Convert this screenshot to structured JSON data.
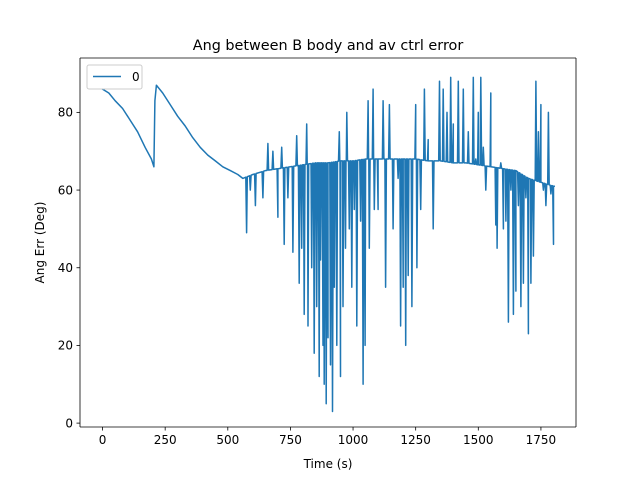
{
  "chart_data": {
    "type": "line",
    "title": "Ang between B body and av ctrl error",
    "xlabel": "Time (s)",
    "ylabel": "Ang Err (Deg)",
    "xlim": [
      -90,
      1890
    ],
    "ylim": [
      -1,
      94
    ],
    "xticks": [
      0,
      250,
      500,
      750,
      1000,
      1250,
      1500,
      1750
    ],
    "yticks": [
      0,
      20,
      40,
      60,
      80
    ],
    "grid": false,
    "legend": {
      "position": "top-left",
      "entries": [
        "0"
      ]
    },
    "series": [
      {
        "name": "0",
        "color": "#1f77b4",
        "baseline": [
          [
            0,
            86
          ],
          [
            25,
            85
          ],
          [
            50,
            83
          ],
          [
            80,
            81
          ],
          [
            110,
            78
          ],
          [
            140,
            75
          ],
          [
            170,
            71
          ],
          [
            195,
            68
          ],
          [
            205,
            66
          ],
          [
            209,
            83
          ],
          [
            215,
            87
          ],
          [
            240,
            85
          ],
          [
            270,
            82
          ],
          [
            300,
            79
          ],
          [
            330,
            76.5
          ],
          [
            360,
            73.5
          ],
          [
            390,
            71
          ],
          [
            420,
            69
          ],
          [
            450,
            67.5
          ],
          [
            480,
            66
          ],
          [
            510,
            65
          ],
          [
            540,
            64
          ],
          [
            560,
            63
          ],
          [
            600,
            64
          ],
          [
            650,
            65
          ],
          [
            700,
            65.5
          ],
          [
            750,
            66
          ],
          [
            800,
            66.5
          ],
          [
            850,
            67
          ],
          [
            900,
            67
          ],
          [
            950,
            67.5
          ],
          [
            1000,
            67.5
          ],
          [
            1050,
            68
          ],
          [
            1100,
            68
          ],
          [
            1150,
            68
          ],
          [
            1200,
            68
          ],
          [
            1250,
            68
          ],
          [
            1300,
            67.5
          ],
          [
            1350,
            67.5
          ],
          [
            1400,
            67
          ],
          [
            1450,
            67
          ],
          [
            1500,
            66.5
          ],
          [
            1550,
            66
          ],
          [
            1600,
            65.5
          ],
          [
            1650,
            65
          ],
          [
            1700,
            63
          ],
          [
            1750,
            62
          ],
          [
            1800,
            61
          ]
        ],
        "spikes": [
          [
            575,
            49
          ],
          [
            590,
            60
          ],
          [
            610,
            56
          ],
          [
            640,
            58
          ],
          [
            660,
            72
          ],
          [
            680,
            70
          ],
          [
            700,
            53
          ],
          [
            715,
            71
          ],
          [
            725,
            46
          ],
          [
            740,
            58
          ],
          [
            760,
            44
          ],
          [
            775,
            74
          ],
          [
            785,
            36
          ],
          [
            795,
            45
          ],
          [
            805,
            28
          ],
          [
            815,
            77
          ],
          [
            820,
            25
          ],
          [
            835,
            40
          ],
          [
            845,
            18
          ],
          [
            855,
            30
          ],
          [
            865,
            12
          ],
          [
            870,
            42
          ],
          [
            880,
            20
          ],
          [
            885,
            10
          ],
          [
            893,
            5
          ],
          [
            900,
            22
          ],
          [
            910,
            15
          ],
          [
            918,
            3
          ],
          [
            925,
            35
          ],
          [
            935,
            20
          ],
          [
            945,
            75
          ],
          [
            950,
            12
          ],
          [
            960,
            30
          ],
          [
            970,
            45
          ],
          [
            975,
            80
          ],
          [
            985,
            50
          ],
          [
            995,
            35
          ],
          [
            1005,
            55
          ],
          [
            1015,
            25
          ],
          [
            1030,
            52
          ],
          [
            1040,
            10
          ],
          [
            1048,
            20
          ],
          [
            1060,
            83
          ],
          [
            1065,
            45
          ],
          [
            1080,
            86
          ],
          [
            1085,
            55
          ],
          [
            1100,
            55
          ],
          [
            1120,
            83
          ],
          [
            1130,
            35
          ],
          [
            1145,
            82
          ],
          [
            1160,
            50
          ],
          [
            1180,
            63
          ],
          [
            1190,
            25
          ],
          [
            1200,
            35
          ],
          [
            1210,
            20
          ],
          [
            1220,
            38
          ],
          [
            1235,
            30
          ],
          [
            1250,
            82
          ],
          [
            1255,
            40
          ],
          [
            1270,
            55
          ],
          [
            1285,
            86
          ],
          [
            1300,
            73
          ],
          [
            1320,
            50
          ],
          [
            1345,
            88
          ],
          [
            1360,
            86
          ],
          [
            1375,
            80
          ],
          [
            1390,
            89
          ],
          [
            1400,
            77
          ],
          [
            1420,
            88
          ],
          [
            1440,
            86
          ],
          [
            1460,
            75
          ],
          [
            1480,
            89
          ],
          [
            1490,
            68
          ],
          [
            1500,
            80
          ],
          [
            1510,
            89
          ],
          [
            1520,
            71
          ],
          [
            1530,
            60
          ],
          [
            1550,
            85
          ],
          [
            1570,
            51
          ],
          [
            1575,
            45
          ],
          [
            1590,
            67
          ],
          [
            1600,
            50
          ],
          [
            1610,
            52
          ],
          [
            1620,
            26
          ],
          [
            1630,
            60
          ],
          [
            1640,
            28
          ],
          [
            1650,
            34
          ],
          [
            1660,
            56
          ],
          [
            1670,
            30
          ],
          [
            1680,
            36
          ],
          [
            1690,
            58
          ],
          [
            1700,
            23
          ],
          [
            1710,
            36
          ],
          [
            1720,
            43
          ],
          [
            1730,
            88
          ],
          [
            1740,
            75
          ],
          [
            1750,
            82
          ],
          [
            1760,
            60
          ],
          [
            1770,
            56
          ],
          [
            1780,
            80
          ],
          [
            1790,
            59
          ],
          [
            1800,
            46
          ]
        ]
      }
    ]
  }
}
